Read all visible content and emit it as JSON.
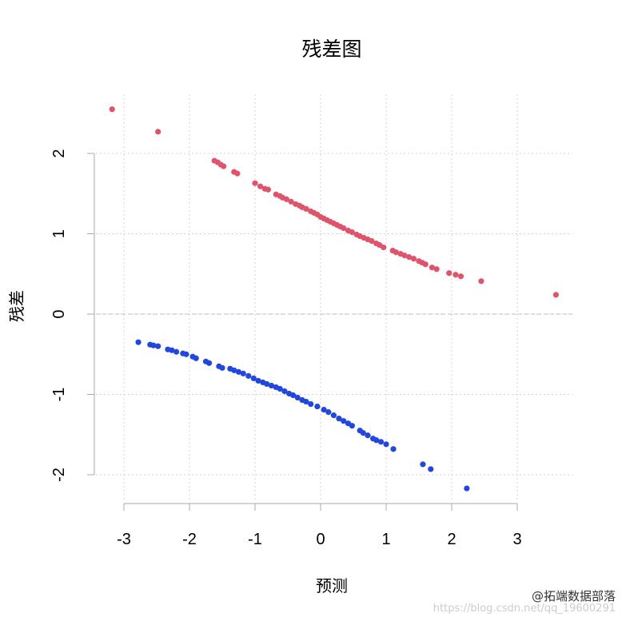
{
  "chart_data": {
    "type": "scatter",
    "title": "残差图",
    "xlabel": "预测",
    "ylabel": "残差",
    "xlim": [
      -3.3,
      3.9
    ],
    "ylim": [
      -2.35,
      2.7
    ],
    "xticks": [
      -3,
      -2,
      -1,
      0,
      1,
      2,
      3
    ],
    "yticks": [
      -2,
      -1,
      0,
      1,
      2
    ],
    "grid": true,
    "reference_line_y": 0,
    "series": [
      {
        "color": "#DF536B",
        "x": [
          -3.18,
          -2.48,
          -1.62,
          -1.57,
          -1.52,
          -1.48,
          -1.32,
          -1.27,
          -1.0,
          -0.92,
          -0.85,
          -0.8,
          -0.68,
          -0.62,
          -0.58,
          -0.52,
          -0.45,
          -0.38,
          -0.32,
          -0.28,
          -0.22,
          -0.15,
          -0.1,
          -0.05,
          0.0,
          0.05,
          0.1,
          0.15,
          0.2,
          0.25,
          0.3,
          0.35,
          0.42,
          0.48,
          0.55,
          0.6,
          0.66,
          0.72,
          0.78,
          0.85,
          0.9,
          0.96,
          1.1,
          1.15,
          1.22,
          1.28,
          1.35,
          1.42,
          1.5,
          1.55,
          1.6,
          1.7,
          1.77,
          1.96,
          2.06,
          2.14,
          2.45,
          3.59
        ],
        "y": [
          2.55,
          2.27,
          1.91,
          1.89,
          1.86,
          1.84,
          1.77,
          1.75,
          1.63,
          1.59,
          1.56,
          1.55,
          1.49,
          1.47,
          1.45,
          1.43,
          1.4,
          1.37,
          1.35,
          1.33,
          1.31,
          1.28,
          1.26,
          1.24,
          1.21,
          1.19,
          1.17,
          1.15,
          1.13,
          1.11,
          1.09,
          1.07,
          1.04,
          1.02,
          0.99,
          0.97,
          0.95,
          0.93,
          0.91,
          0.88,
          0.86,
          0.83,
          0.79,
          0.77,
          0.75,
          0.73,
          0.71,
          0.69,
          0.66,
          0.64,
          0.62,
          0.58,
          0.56,
          0.51,
          0.49,
          0.47,
          0.41,
          0.24
        ]
      },
      {
        "color": "#2247DD",
        "x": [
          -2.78,
          -2.6,
          -2.55,
          -2.48,
          -2.33,
          -2.27,
          -2.2,
          -2.1,
          -2.05,
          -1.95,
          -1.9,
          -1.75,
          -1.7,
          -1.55,
          -1.5,
          -1.38,
          -1.32,
          -1.25,
          -1.18,
          -1.1,
          -1.02,
          -0.95,
          -0.88,
          -0.82,
          -0.75,
          -0.68,
          -0.62,
          -0.55,
          -0.48,
          -0.42,
          -0.35,
          -0.28,
          -0.22,
          -0.15,
          -0.05,
          0.05,
          0.12,
          0.2,
          0.28,
          0.35,
          0.42,
          0.48,
          0.6,
          0.65,
          0.72,
          0.8,
          0.85,
          0.92,
          1.0,
          1.11,
          1.56,
          1.68,
          2.23
        ],
        "y": [
          -0.35,
          -0.38,
          -0.39,
          -0.4,
          -0.44,
          -0.45,
          -0.47,
          -0.49,
          -0.5,
          -0.53,
          -0.55,
          -0.59,
          -0.61,
          -0.65,
          -0.67,
          -0.68,
          -0.7,
          -0.72,
          -0.74,
          -0.77,
          -0.8,
          -0.83,
          -0.85,
          -0.87,
          -0.89,
          -0.91,
          -0.93,
          -0.96,
          -0.99,
          -1.01,
          -1.04,
          -1.07,
          -1.09,
          -1.12,
          -1.15,
          -1.19,
          -1.22,
          -1.26,
          -1.3,
          -1.33,
          -1.36,
          -1.39,
          -1.45,
          -1.48,
          -1.51,
          -1.55,
          -1.57,
          -1.59,
          -1.62,
          -1.68,
          -1.87,
          -1.93,
          -2.17
        ]
      }
    ]
  },
  "watermark": {
    "brand": "@拓端数据部落",
    "url": "https://blog.csdn.net/qq_19600291"
  }
}
